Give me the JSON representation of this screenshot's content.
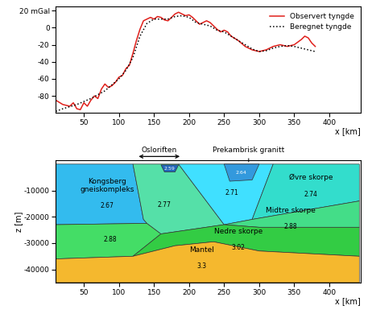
{
  "chart_data": [
    {
      "type": "line",
      "xlabel": "x [km]",
      "xlim": [
        10,
        445
      ],
      "xticks": [
        50,
        100,
        150,
        200,
        250,
        300,
        350,
        400
      ],
      "ylim": [
        -100,
        25
      ],
      "yticks": [
        {
          "value": 20,
          "label": "20 mGal"
        },
        0,
        -20,
        -40,
        -60,
        -80
      ],
      "grid": false,
      "legend": "upper right",
      "series": [
        {
          "name": "Observert tyngde",
          "color": "#e0201b",
          "line_style": "solid",
          "x": [
            10,
            20,
            30,
            35,
            40,
            45,
            50,
            55,
            60,
            65,
            70,
            75,
            80,
            85,
            90,
            95,
            100,
            105,
            110,
            115,
            120,
            125,
            130,
            135,
            140,
            145,
            150,
            155,
            160,
            165,
            170,
            175,
            180,
            185,
            190,
            195,
            200,
            205,
            210,
            215,
            220,
            225,
            230,
            235,
            240,
            245,
            250,
            255,
            260,
            270,
            280,
            290,
            300,
            310,
            320,
            330,
            340,
            350,
            360,
            365,
            370,
            375,
            380
          ],
          "values": [
            -85,
            -90,
            -92,
            -88,
            -95,
            -96,
            -88,
            -92,
            -85,
            -80,
            -83,
            -72,
            -66,
            -70,
            -68,
            -64,
            -58,
            -56,
            -48,
            -44,
            -30,
            -15,
            -2,
            8,
            10,
            12,
            10,
            13,
            12,
            9,
            8,
            12,
            16,
            18,
            16,
            14,
            15,
            12,
            8,
            4,
            6,
            8,
            6,
            2,
            -2,
            -5,
            -3,
            -5,
            -10,
            -15,
            -22,
            -26,
            -28,
            -26,
            -22,
            -20,
            -22,
            -20,
            -14,
            -10,
            -12,
            -18,
            -22
          ]
        },
        {
          "name": "Beregnet tyngde",
          "color": "#000000",
          "line_style": "dotted",
          "x": [
            10,
            20,
            40,
            60,
            80,
            100,
            110,
            120,
            130,
            140,
            150,
            160,
            170,
            180,
            190,
            200,
            210,
            220,
            230,
            240,
            250,
            260,
            270,
            280,
            290,
            300,
            310,
            320,
            330,
            340,
            350,
            360,
            370,
            380
          ],
          "values": [
            -98,
            -95,
            -90,
            -83,
            -74,
            -60,
            -50,
            -35,
            -10,
            5,
            10,
            10,
            10,
            13,
            14,
            12,
            6,
            4,
            2,
            -3,
            -5,
            -10,
            -15,
            -20,
            -25,
            -28,
            -27,
            -24,
            -22,
            -21,
            -22,
            -24,
            -26,
            -28
          ]
        }
      ]
    },
    {
      "type": "polygon",
      "xlabel": "x [km]",
      "ylabel": "z [m]",
      "xlim": [
        10,
        445
      ],
      "xticks": [
        50,
        100,
        150,
        200,
        250,
        300,
        350,
        400
      ],
      "ylim": [
        -45000,
        1500
      ],
      "yticks": [
        -10000,
        -20000,
        -30000,
        -40000
      ],
      "grid": false,
      "regions": [
        {
          "name": "Kongsberg\ngneiskompleks",
          "density": 2.67,
          "color": "#33bbee",
          "x": [
            10,
            120,
            135,
            140,
            10
          ],
          "z": [
            0,
            0,
            -21000,
            -22500,
            -23000
          ]
        },
        {
          "density": 2.88,
          "color": "#44dd66",
          "x": [
            10,
            140,
            160,
            120,
            10
          ],
          "z": [
            -23000,
            -22500,
            -26500,
            -35000,
            -36000
          ]
        },
        {
          "density": 2.77,
          "color": "#55e0a8",
          "x": [
            120,
            185,
            250,
            160,
            140,
            135
          ],
          "z": [
            0,
            0,
            -23000,
            -26500,
            -22500,
            -21000
          ]
        },
        {
          "density": 2.71,
          "color": "#40e0ff",
          "x": [
            185,
            320,
            290,
            250
          ],
          "z": [
            0,
            0,
            -21000,
            -23000
          ]
        },
        {
          "name": "Øvre skorpe",
          "density": 2.74,
          "color": "#33ddcc",
          "x": [
            320,
            443,
            443,
            290
          ],
          "z": [
            0,
            0,
            -14000,
            -21000
          ]
        },
        {
          "name": "Midtre skorpe",
          "density": 2.88,
          "color": "#44dd88",
          "x": [
            250,
            290,
            443,
            443,
            300
          ],
          "z": [
            -23000,
            -21000,
            -14000,
            -24000,
            -24000
          ]
        },
        {
          "name": "Nedre skorpe",
          "density": 3.02,
          "color": "#33cc44",
          "x": [
            160,
            250,
            300,
            443,
            443,
            300,
            235,
            180,
            120
          ],
          "z": [
            -26500,
            -23000,
            -24000,
            -24000,
            -35000,
            -33000,
            -29500,
            -31000,
            -35000
          ]
        },
        {
          "name": "Mantel",
          "density": 3.3,
          "color": "#f5b82e",
          "x": [
            10,
            120,
            180,
            235,
            300,
            443,
            443,
            10
          ],
          "z": [
            -36000,
            -35000,
            -31000,
            -29500,
            -33000,
            -35000,
            -45000,
            -45000
          ]
        },
        {
          "density": 2.64,
          "color": "#3399dd",
          "x": [
            250,
            300,
            290,
            258
          ],
          "z": [
            0,
            0,
            -6000,
            -6500
          ]
        },
        {
          "density": 2.59,
          "color": "#2266bb",
          "x": [
            160,
            185,
            180,
            165
          ],
          "z": [
            -300,
            -300,
            -3000,
            -3000
          ]
        }
      ],
      "annotations": [
        {
          "text": "Osloriften",
          "x": [
            125,
            190
          ]
        },
        {
          "text": "Prekambrisk granitt",
          "x": 285,
          "z": 0
        }
      ]
    }
  ]
}
